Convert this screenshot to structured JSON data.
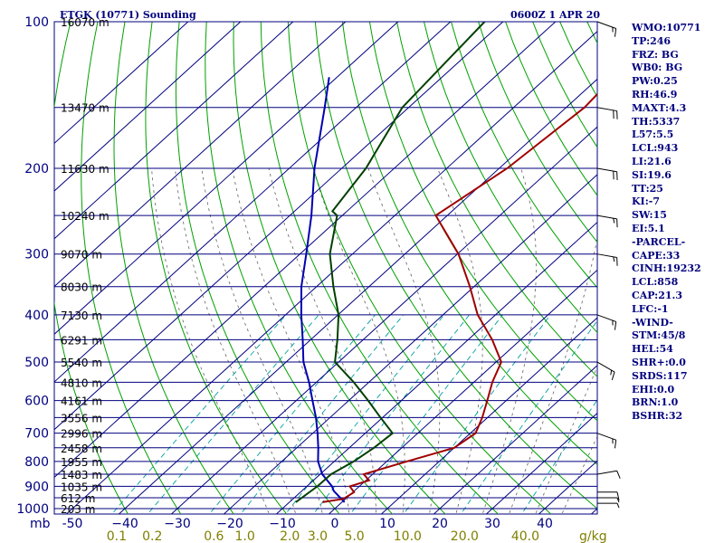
{
  "title": "ETGK (10771) Sounding",
  "time": "0600Z  1 APR 20",
  "sidebar": [
    "WMO:10771",
    "TP:246",
    "FRZ: BG",
    "WB0: BG",
    "PW:0.25",
    "RH:46.9",
    "MAXT:4.3",
    "TH:5337",
    "L57:5.5",
    "LCL:943",
    "LI:21.6",
    "SI:19.6",
    "TT:25",
    "KI:-7",
    "SW:15",
    "EI:5.1",
    "-PARCEL-",
    "CAPE:33",
    "CINH:19232",
    "LCL:858",
    "CAP:21.3",
    "LFC:-1",
    "-WIND-",
    "STM:45/8",
    "HEL:54",
    "SHR+:0.0",
    "SRDS:117",
    "EHI:0.0",
    "BRN:1.0",
    "BSHR:32"
  ],
  "colors": {
    "isobar": "#00007f",
    "isotherm": "#00007f",
    "dry_adiabat": "#00a000",
    "moist_adiabat": "#606060",
    "mixing_ratio": "#00a0a0",
    "temperature": "#a00000",
    "dewpoint": "#004000",
    "parcel": "#0000b0",
    "label": "#000080",
    "mixing_label": "#7f7f00"
  },
  "chart_data": {
    "type": "skew-t",
    "title": "ETGK (10771) Sounding",
    "x_label": "mb",
    "mixing_ratio_unit": "g/kg",
    "pressure_levels": [
      {
        "p": 1000,
        "label": "1000"
      },
      {
        "p": 900,
        "label": "900"
      },
      {
        "p": 800,
        "label": "800"
      },
      {
        "p": 700,
        "label": "700"
      },
      {
        "p": 600,
        "label": "600"
      },
      {
        "p": 500,
        "label": "500"
      },
      {
        "p": 400,
        "label": "400"
      },
      {
        "p": 300,
        "label": "300"
      },
      {
        "p": 200,
        "label": "200"
      },
      {
        "p": 100,
        "label": "100"
      }
    ],
    "temperature_ticks": [
      {
        "t": -50,
        "label": "-50"
      },
      {
        "t": -40,
        "label": "−40"
      },
      {
        "t": -30,
        "label": "−30"
      },
      {
        "t": -20,
        "label": "−20"
      },
      {
        "t": -10,
        "label": "−10"
      },
      {
        "t": 0,
        "label": "0"
      },
      {
        "t": 10,
        "label": "10"
      },
      {
        "t": 20,
        "label": "20"
      },
      {
        "t": 30,
        "label": "30"
      },
      {
        "t": 40,
        "label": "40"
      }
    ],
    "mixing_ratio_ticks": [
      {
        "w": 0.1,
        "label": "0.1"
      },
      {
        "w": 0.2,
        "label": "0.2"
      },
      {
        "w": 0.6,
        "label": "0.6"
      },
      {
        "w": 1.0,
        "label": "1.0"
      },
      {
        "w": 2.0,
        "label": "2.0"
      },
      {
        "w": 3.0,
        "label": "3.0"
      },
      {
        "w": 5.0,
        "label": "5.0"
      },
      {
        "w": 10.0,
        "label": "10.0"
      },
      {
        "w": 20.0,
        "label": "20.0"
      },
      {
        "w": 40.0,
        "label": "40.0"
      }
    ],
    "height_labels": [
      {
        "p": 100,
        "label": "16070 m"
      },
      {
        "p": 150,
        "label": "13470 m"
      },
      {
        "p": 200,
        "label": "11630 m"
      },
      {
        "p": 250,
        "label": "10240 m"
      },
      {
        "p": 300,
        "label": "9070 m"
      },
      {
        "p": 350,
        "label": "8030 m"
      },
      {
        "p": 400,
        "label": "7130 m"
      },
      {
        "p": 450,
        "label": "6291 m"
      },
      {
        "p": 500,
        "label": "5540 m"
      },
      {
        "p": 550,
        "label": "4810 m"
      },
      {
        "p": 600,
        "label": "4161 m"
      },
      {
        "p": 650,
        "label": "3556 m"
      },
      {
        "p": 700,
        "label": "2996 m"
      },
      {
        "p": 750,
        "label": "2458 m"
      },
      {
        "p": 800,
        "label": "1955 m"
      },
      {
        "p": 850,
        "label": "1483 m"
      },
      {
        "p": 900,
        "label": "1035 m"
      },
      {
        "p": 950,
        "label": "612 m"
      },
      {
        "p": 1000,
        "label": "203 m"
      }
    ],
    "temperature_profile": [
      {
        "p": 970,
        "t": -3.7
      },
      {
        "p": 955,
        "t": -0.4
      },
      {
        "p": 925,
        "t": 0.2
      },
      {
        "p": 900,
        "t": -1.8
      },
      {
        "p": 875,
        "t": 0.6
      },
      {
        "p": 850,
        "t": -1.7
      },
      {
        "p": 800,
        "t": 3.8
      },
      {
        "p": 750,
        "t": 10.0
      },
      {
        "p": 700,
        "t": 11.0
      },
      {
        "p": 650,
        "t": 9.0
      },
      {
        "p": 600,
        "t": 6.4
      },
      {
        "p": 550,
        "t": 3.5
      },
      {
        "p": 500,
        "t": 1.0
      },
      {
        "p": 450,
        "t": -5.4
      },
      {
        "p": 400,
        "t": -13.4
      },
      {
        "p": 350,
        "t": -20.8
      },
      {
        "p": 300,
        "t": -29.8
      },
      {
        "p": 250,
        "t": -42.2
      },
      {
        "p": 200,
        "t": -38.5
      },
      {
        "p": 150,
        "t": -36.5
      },
      {
        "p": 100,
        "t": -38.8
      }
    ],
    "dewpoint_profile": [
      {
        "p": 970,
        "t": -8.8
      },
      {
        "p": 900,
        "t": -8.0
      },
      {
        "p": 850,
        "t": -7.9
      },
      {
        "p": 800,
        "t": -6.3
      },
      {
        "p": 750,
        "t": -5.3
      },
      {
        "p": 700,
        "t": -4.8
      },
      {
        "p": 650,
        "t": -10.4
      },
      {
        "p": 600,
        "t": -16.3
      },
      {
        "p": 550,
        "t": -22.9
      },
      {
        "p": 500,
        "t": -30.7
      },
      {
        "p": 450,
        "t": -34.9
      },
      {
        "p": 400,
        "t": -39.9
      },
      {
        "p": 350,
        "t": -46.8
      },
      {
        "p": 300,
        "t": -54.3
      },
      {
        "p": 250,
        "t": -61.0
      },
      {
        "p": 245,
        "t": -62.8
      },
      {
        "p": 200,
        "t": -65.4
      },
      {
        "p": 150,
        "t": -71.2
      },
      {
        "p": 100,
        "t": -73.5
      }
    ],
    "parcel_profile": [
      {
        "p": 970,
        "t": 0.5
      },
      {
        "p": 920,
        "t": -3.9
      },
      {
        "p": 900,
        "t": -5.2
      },
      {
        "p": 850,
        "t": -9.6
      },
      {
        "p": 800,
        "t": -13.1
      },
      {
        "p": 750,
        "t": -15.9
      },
      {
        "p": 700,
        "t": -19.1
      },
      {
        "p": 650,
        "t": -22.7
      },
      {
        "p": 600,
        "t": -26.9
      },
      {
        "p": 550,
        "t": -31.4
      },
      {
        "p": 500,
        "t": -36.7
      },
      {
        "p": 450,
        "t": -41.5
      },
      {
        "p": 400,
        "t": -47.0
      },
      {
        "p": 350,
        "t": -52.9
      },
      {
        "p": 300,
        "t": -58.8
      },
      {
        "p": 250,
        "t": -65.9
      },
      {
        "p": 200,
        "t": -75.2
      },
      {
        "p": 150,
        "t": -86.0
      },
      {
        "p": 130,
        "t": -91.5
      }
    ],
    "wind_barbs": [
      {
        "p": 975,
        "dir": 270,
        "speed": 5
      },
      {
        "p": 950,
        "dir": 270,
        "speed": 5
      },
      {
        "p": 925,
        "dir": 270,
        "speed": 10
      },
      {
        "p": 850,
        "dir": 260,
        "speed": 10
      },
      {
        "p": 700,
        "dir": 290,
        "speed": 15
      },
      {
        "p": 500,
        "dir": 300,
        "speed": 15
      },
      {
        "p": 400,
        "dir": 290,
        "speed": 15
      },
      {
        "p": 300,
        "dir": 280,
        "speed": 15
      },
      {
        "p": 250,
        "dir": 280,
        "speed": 15
      },
      {
        "p": 200,
        "dir": 280,
        "speed": 20
      },
      {
        "p": 150,
        "dir": 280,
        "speed": 20
      },
      {
        "p": 100,
        "dir": 290,
        "speed": 15
      }
    ]
  }
}
